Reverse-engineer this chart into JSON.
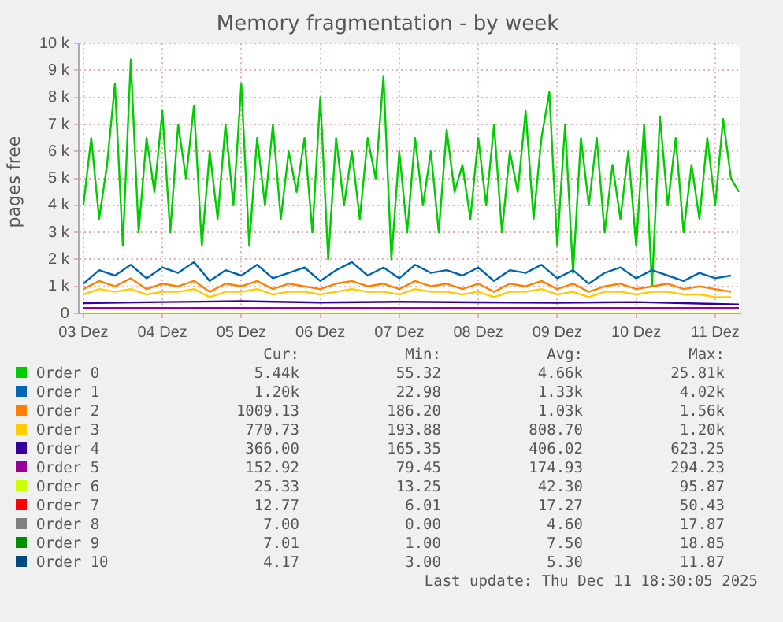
{
  "chart_data": {
    "type": "line",
    "title": "Memory fragmentation - by week",
    "ylabel": "pages free",
    "xlim": [
      2.94,
      11.32
    ],
    "xticks": [
      {
        "value": 3,
        "label": "03 Dez"
      },
      {
        "value": 4,
        "label": "04 Dez"
      },
      {
        "value": 5,
        "label": "05 Dez"
      },
      {
        "value": 6,
        "label": "06 Dez"
      },
      {
        "value": 7,
        "label": "07 Dez"
      },
      {
        "value": 8,
        "label": "08 Dez"
      },
      {
        "value": 9,
        "label": "09 Dez"
      },
      {
        "value": 10,
        "label": "10 Dez"
      },
      {
        "value": 11,
        "label": "11 Dez"
      }
    ],
    "ylim": [
      0,
      10000
    ],
    "yticks": [
      0,
      {
        "value": 1000,
        "label": "1 k"
      },
      {
        "value": 2000,
        "label": "2 k"
      },
      {
        "value": 3000,
        "label": "3 k"
      },
      {
        "value": 4000,
        "label": "4 k"
      },
      {
        "value": 5000,
        "label": "5 k"
      },
      {
        "value": 6000,
        "label": "6 k"
      },
      {
        "value": 7000,
        "label": "7 k"
      },
      {
        "value": 8000,
        "label": "8 k"
      },
      {
        "value": 9000,
        "label": "9 k"
      },
      {
        "value": 10000,
        "label": "10 k"
      }
    ],
    "grid": true,
    "legend": "bottom",
    "marker": "none",
    "line_style": "solid",
    "series": [
      {
        "name": "Order 0",
        "color": "#00cc00",
        "x": [
          3.0,
          3.1,
          3.2,
          3.3,
          3.4,
          3.5,
          3.6,
          3.7,
          3.8,
          3.9,
          4.0,
          4.1,
          4.2,
          4.3,
          4.4,
          4.5,
          4.6,
          4.7,
          4.8,
          4.9,
          5.0,
          5.1,
          5.2,
          5.3,
          5.4,
          5.5,
          5.6,
          5.7,
          5.8,
          5.9,
          6.0,
          6.1,
          6.2,
          6.3,
          6.4,
          6.5,
          6.6,
          6.7,
          6.8,
          6.9,
          7.0,
          7.1,
          7.2,
          7.3,
          7.4,
          7.5,
          7.6,
          7.7,
          7.8,
          7.9,
          8.0,
          8.1,
          8.2,
          8.3,
          8.4,
          8.5,
          8.6,
          8.7,
          8.8,
          8.9,
          9.0,
          9.1,
          9.2,
          9.3,
          9.4,
          9.5,
          9.6,
          9.7,
          9.8,
          9.9,
          10.0,
          10.1,
          10.2,
          10.3,
          10.4,
          10.5,
          10.6,
          10.7,
          10.8,
          10.9,
          11.0,
          11.1,
          11.2,
          11.3
        ],
        "values": [
          4000,
          6500,
          3500,
          5500,
          8500,
          2500,
          9400,
          3000,
          6500,
          4500,
          7500,
          3000,
          7000,
          5000,
          7700,
          2500,
          6000,
          3500,
          7000,
          4000,
          8500,
          2500,
          6500,
          4000,
          7000,
          3500,
          6000,
          4500,
          6500,
          3000,
          8000,
          2000,
          6500,
          4000,
          6000,
          3500,
          6500,
          5000,
          8800,
          2000,
          6000,
          3000,
          6500,
          4000,
          6000,
          3000,
          6800,
          4500,
          5500,
          3500,
          6500,
          4000,
          7000,
          3000,
          6000,
          4500,
          7500,
          3500,
          6500,
          8200,
          2500,
          7000,
          1500,
          6500,
          4000,
          6500,
          3000,
          5500,
          3500,
          6000,
          2500,
          7000,
          1000,
          7300,
          4000,
          6500,
          3000,
          5500,
          3500,
          6500,
          4000,
          7200,
          5000,
          4500
        ]
      },
      {
        "name": "Order 1",
        "color": "#0066b3",
        "x": [
          3.0,
          3.2,
          3.4,
          3.6,
          3.8,
          4.0,
          4.2,
          4.4,
          4.6,
          4.8,
          5.0,
          5.2,
          5.4,
          5.6,
          5.8,
          6.0,
          6.2,
          6.4,
          6.6,
          6.8,
          7.0,
          7.2,
          7.4,
          7.6,
          7.8,
          8.0,
          8.2,
          8.4,
          8.6,
          8.8,
          9.0,
          9.2,
          9.4,
          9.6,
          9.8,
          10.0,
          10.2,
          10.4,
          10.6,
          10.8,
          11.0,
          11.2
        ],
        "values": [
          1100,
          1600,
          1400,
          1800,
          1300,
          1700,
          1500,
          1900,
          1200,
          1600,
          1400,
          1800,
          1300,
          1500,
          1700,
          1200,
          1600,
          1900,
          1400,
          1700,
          1300,
          1800,
          1500,
          1600,
          1400,
          1700,
          1200,
          1600,
          1500,
          1800,
          1300,
          1600,
          1100,
          1500,
          1700,
          1300,
          1600,
          1400,
          1200,
          1500,
          1300,
          1400
        ]
      },
      {
        "name": "Order 2",
        "color": "#ff8000",
        "x": [
          3.0,
          3.2,
          3.4,
          3.6,
          3.8,
          4.0,
          4.2,
          4.4,
          4.6,
          4.8,
          5.0,
          5.2,
          5.4,
          5.6,
          5.8,
          6.0,
          6.2,
          6.4,
          6.6,
          6.8,
          7.0,
          7.2,
          7.4,
          7.6,
          7.8,
          8.0,
          8.2,
          8.4,
          8.6,
          8.8,
          9.0,
          9.2,
          9.4,
          9.6,
          9.8,
          10.0,
          10.2,
          10.4,
          10.6,
          10.8,
          11.0,
          11.2
        ],
        "values": [
          900,
          1200,
          1000,
          1300,
          900,
          1100,
          1000,
          1200,
          800,
          1100,
          1000,
          1200,
          900,
          1100,
          1000,
          900,
          1100,
          1200,
          1000,
          1100,
          900,
          1200,
          1000,
          1100,
          900,
          1100,
          800,
          1100,
          1000,
          1200,
          900,
          1100,
          800,
          1000,
          1100,
          900,
          1000,
          1100,
          900,
          1000,
          900,
          800
        ]
      },
      {
        "name": "Order 3",
        "color": "#ffcc00",
        "x": [
          3.0,
          3.2,
          3.4,
          3.6,
          3.8,
          4.0,
          4.2,
          4.4,
          4.6,
          4.8,
          5.0,
          5.2,
          5.4,
          5.6,
          5.8,
          6.0,
          6.2,
          6.4,
          6.6,
          6.8,
          7.0,
          7.2,
          7.4,
          7.6,
          7.8,
          8.0,
          8.2,
          8.4,
          8.6,
          8.8,
          9.0,
          9.2,
          9.4,
          9.6,
          9.8,
          10.0,
          10.2,
          10.4,
          10.6,
          10.8,
          11.0,
          11.2
        ],
        "values": [
          700,
          900,
          800,
          900,
          700,
          800,
          800,
          900,
          600,
          800,
          800,
          900,
          700,
          800,
          800,
          700,
          800,
          900,
          800,
          800,
          700,
          900,
          800,
          800,
          700,
          800,
          600,
          800,
          800,
          900,
          700,
          800,
          600,
          800,
          800,
          700,
          800,
          800,
          700,
          700,
          600,
          600
        ]
      },
      {
        "name": "Order 4",
        "color": "#330099",
        "x": [
          3,
          4,
          5,
          6,
          7,
          8,
          9,
          10,
          11,
          11.3
        ],
        "values": [
          380,
          420,
          450,
          400,
          430,
          410,
          390,
          420,
          350,
          330
        ]
      },
      {
        "name": "Order 5",
        "color": "#990099",
        "x": [
          3,
          4,
          5,
          6,
          7,
          8,
          9,
          10,
          11,
          11.3
        ],
        "values": [
          200,
          200,
          200,
          200,
          200,
          200,
          200,
          200,
          200,
          200
        ]
      },
      {
        "name": "Order 6",
        "color": "#ccff00",
        "x": [
          3,
          4,
          5,
          6,
          7,
          8,
          9,
          10,
          11,
          11.3
        ],
        "values": [
          0,
          0,
          0,
          0,
          0,
          0,
          0,
          0,
          0,
          0
        ]
      },
      {
        "name": "Order 7",
        "color": "#ff0000"
      },
      {
        "name": "Order 8",
        "color": "#808080"
      },
      {
        "name": "Order 9",
        "color": "#008f00"
      },
      {
        "name": "Order 10",
        "color": "#00487d"
      }
    ],
    "annotations": [
      "Cur:",
      "Min:",
      "Avg:",
      "Max:",
      "5.44k",
      "55.32",
      "4.66k",
      "25.81k",
      "1.20k",
      "22.98",
      "1.33k",
      "4.02k",
      "1009.13",
      "186.20",
      "1.03k",
      "1.56k",
      "770.73",
      "193.88",
      "808.70",
      "1.20k",
      "366.00",
      "165.35",
      "406.02",
      "623.25",
      "152.92",
      "79.45",
      "174.93",
      "294.23",
      "25.33",
      "13.25",
      "42.30",
      "95.87",
      "12.77",
      "6.01",
      "17.27",
      "50.43",
      "7.00",
      "0.00",
      "4.60",
      "17.87",
      "7.01",
      "1.00",
      "7.50",
      "18.85",
      "4.17",
      "3.00",
      "5.30",
      "11.87",
      "Last update: Thu Dec 11 18:30:05 2025"
    ]
  }
}
